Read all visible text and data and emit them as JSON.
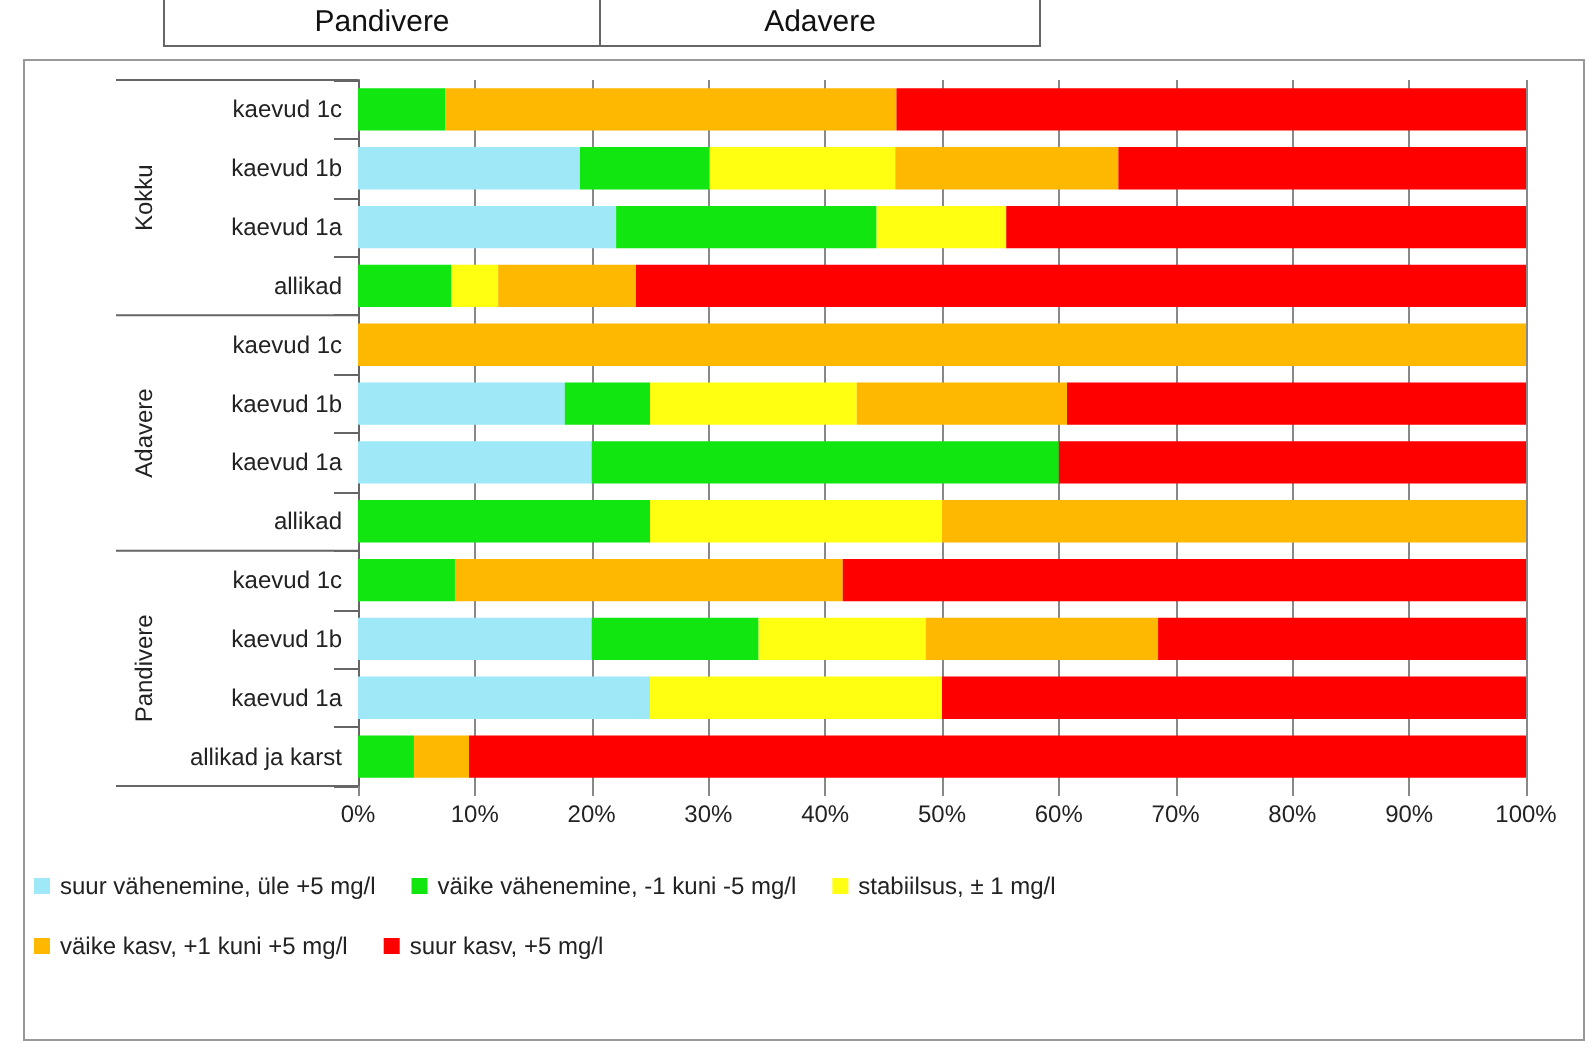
{
  "chart_data": {
    "type": "bar",
    "orientation": "horizontal",
    "stacked": true,
    "categories": [
      "kaevud 1c",
      "kaevud 1b",
      "kaevud 1a",
      "allikad",
      "kaevud 1c",
      "kaevud 1b",
      "kaevud 1a",
      "allikad",
      "kaevud 1c",
      "kaevud 1b",
      "kaevud 1a",
      "allikad ja karst"
    ],
    "series": [
      {
        "name": "suur vähenemine, üle +5 mg/l",
        "color": "#9ee8f8",
        "values": [
          0,
          19,
          22.1,
          0,
          0,
          17.7,
          20,
          0,
          0,
          20,
          25,
          0
        ]
      },
      {
        "name": "väike vähenemine, -1 kuni -5 mg/l",
        "color": "#11e611",
        "values": [
          7.5,
          11.1,
          22.3,
          8,
          0,
          7.3,
          40,
          25,
          8.3,
          14.3,
          0,
          4.8
        ]
      },
      {
        "name": "stabiilsus, ± 1 mg/l",
        "color": "#ffff11",
        "values": [
          0,
          15.9,
          11.1,
          4,
          0,
          17.7,
          0,
          25,
          0,
          14.3,
          25,
          0
        ]
      },
      {
        "name": "väike kasv, +1 kuni +5 mg/l",
        "color": "#ffb800",
        "values": [
          38.6,
          19.1,
          0,
          11.8,
          100,
          18,
          0,
          50,
          33.2,
          19.9,
          0,
          4.7
        ]
      },
      {
        "name": "suur kasv, +5 mg/l",
        "color": "#ff0000",
        "values": [
          53.9,
          34.9,
          44.5,
          76.2,
          0,
          39.3,
          40,
          0,
          58.5,
          31.5,
          50,
          90.5
        ]
      }
    ],
    "xlim": [
      0,
      100
    ],
    "xticks": [
      {
        "value": 0,
        "label": "0%"
      },
      {
        "value": 10,
        "label": "10%"
      },
      {
        "value": 20,
        "label": "20%"
      },
      {
        "value": 30,
        "label": "30%"
      },
      {
        "value": 40,
        "label": "40%"
      },
      {
        "value": 50,
        "label": "50%"
      },
      {
        "value": 60,
        "label": "60%"
      },
      {
        "value": 70,
        "label": "70%"
      },
      {
        "value": 80,
        "label": "80%"
      },
      {
        "value": 90,
        "label": "90%"
      },
      {
        "value": 100,
        "label": "100%"
      }
    ],
    "annotations": [
      "Pandivere",
      "Adavere",
      "Kokku",
      "Adavere",
      "Pandivere"
    ],
    "grid": "x",
    "legend": "bottom"
  }
}
